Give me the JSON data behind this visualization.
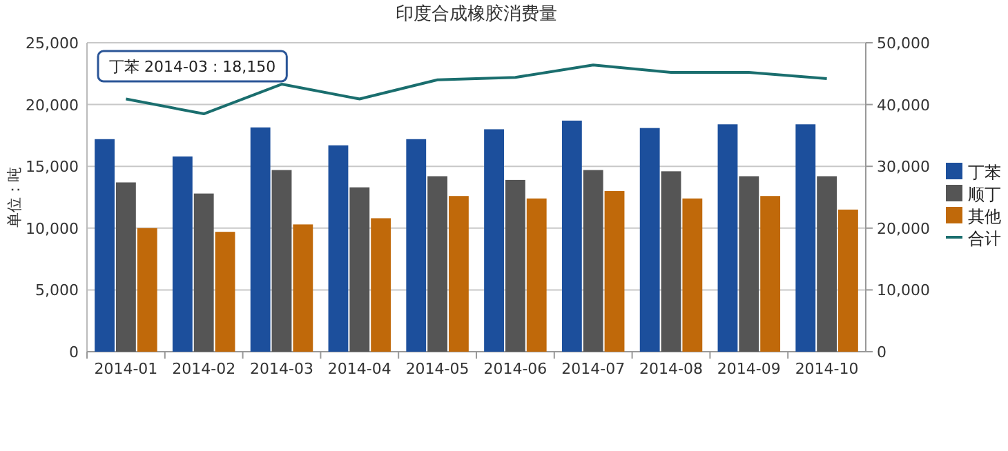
{
  "chart_data": {
    "type": "bar",
    "title": "印度合成橡胶消费量",
    "ylabel": "单位：吨",
    "categories": [
      "2014-01",
      "2014-02",
      "2014-03",
      "2014-04",
      "2014-05",
      "2014-06",
      "2014-07",
      "2014-08",
      "2014-09",
      "2014-10"
    ],
    "series": [
      {
        "name": "丁苯",
        "color": "#1c4f9c",
        "values": [
          17200,
          15800,
          18150,
          16700,
          17200,
          18000,
          18700,
          18100,
          18400,
          18400
        ]
      },
      {
        "name": "顺丁",
        "color": "#555555",
        "values": [
          13700,
          12800,
          14700,
          13300,
          14200,
          13900,
          14700,
          14600,
          14200,
          14200
        ]
      },
      {
        "name": "其他",
        "color": "#c0690a",
        "values": [
          10000,
          9700,
          10300,
          10800,
          12600,
          12400,
          13000,
          12400,
          12600,
          11500
        ]
      },
      {
        "name": "合计",
        "type": "line",
        "axis": "y2",
        "color": "#1a6e6e",
        "values": [
          40900,
          38500,
          43300,
          40900,
          44000,
          44400,
          46400,
          45200,
          45200,
          44200
        ]
      }
    ],
    "ylim": [
      0,
      25000
    ],
    "yticks": [
      {
        "value": 0,
        "label": "0"
      },
      {
        "value": 5000,
        "label": "5,000"
      },
      {
        "value": 10000,
        "label": "10,000"
      },
      {
        "value": 15000,
        "label": "15,000"
      },
      {
        "value": 20000,
        "label": "20,000"
      },
      {
        "value": 25000,
        "label": "25,000"
      }
    ],
    "y2lim": [
      0,
      50000
    ],
    "y2ticks": [
      {
        "value": 0,
        "label": "0"
      },
      {
        "value": 10000,
        "label": "10,000"
      },
      {
        "value": 20000,
        "label": "20,000"
      },
      {
        "value": 30000,
        "label": "30,000"
      },
      {
        "value": 40000,
        "label": "40,000"
      },
      {
        "value": 50000,
        "label": "50,000"
      }
    ],
    "grid": "y",
    "legend": "right",
    "annotations": [
      "丁苯 2014-03 : 18,150"
    ]
  }
}
